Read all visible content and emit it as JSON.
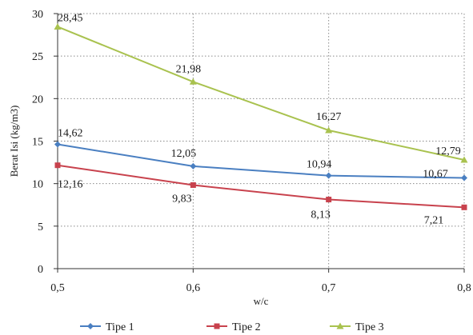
{
  "chart_data": {
    "type": "line",
    "title": "",
    "xlabel": "w/c",
    "ylabel": "Berat Isi (kg/m3)",
    "x": [
      0.5,
      0.6,
      0.7,
      0.8
    ],
    "x_tick_labels": [
      "0,5",
      "0,6",
      "0,7",
      "0,8"
    ],
    "xlim": [
      0.5,
      0.8
    ],
    "ylim": [
      0,
      30
    ],
    "y_ticks": [
      0,
      5,
      10,
      15,
      20,
      25,
      30
    ],
    "grid": true,
    "legend_position": "bottom",
    "series": [
      {
        "name": "Tipe 1",
        "color": "#4a7fc1",
        "marker": "diamond",
        "values": [
          14.62,
          12.05,
          10.94,
          10.67
        ],
        "labels": [
          "14,62",
          "12,05",
          "10,94",
          "10,67"
        ]
      },
      {
        "name": "Tipe 2",
        "color": "#c8424d",
        "marker": "square",
        "values": [
          12.16,
          9.83,
          8.13,
          7.21
        ],
        "labels": [
          "12,16",
          "9,83",
          "8,13",
          "7,21"
        ]
      },
      {
        "name": "Tipe 3",
        "color": "#a9c24f",
        "marker": "triangle",
        "values": [
          28.45,
          21.98,
          16.27,
          12.79
        ],
        "labels": [
          "28,45",
          "21,98",
          "16,27",
          "12,79"
        ]
      }
    ]
  }
}
